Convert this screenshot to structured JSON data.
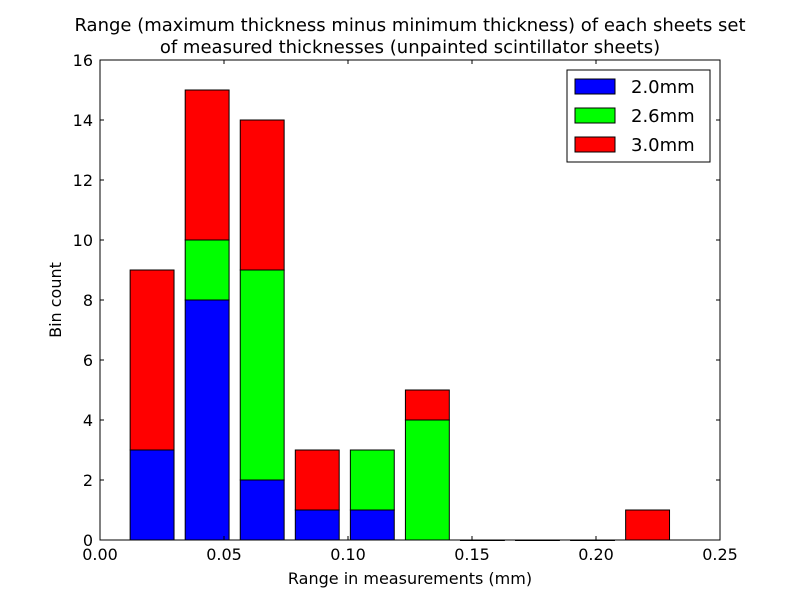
{
  "chart_data": {
    "type": "bar",
    "stacked": true,
    "title_lines": [
      "Range (maximum thickness minus minimum thickness) of each sheets set",
      "of measured thicknesses (unpainted scintillator sheets)"
    ],
    "xlabel": "Range in measurements (mm)",
    "ylabel": "Bin count",
    "xlim": [
      0.0,
      0.25
    ],
    "ylim": [
      0,
      16
    ],
    "xticks": [
      "0.00",
      "0.05",
      "0.10",
      "0.15",
      "0.20",
      "0.25"
    ],
    "xtick_values": [
      0,
      0.05,
      0.1,
      0.15,
      0.2,
      0.25
    ],
    "yticks": [
      "0",
      "2",
      "4",
      "6",
      "8",
      "10",
      "12",
      "14",
      "16"
    ],
    "ytick_values": [
      0,
      2,
      4,
      6,
      8,
      10,
      12,
      14,
      16
    ],
    "bin_centers": [
      0.021,
      0.0432,
      0.0654,
      0.0876,
      0.1098,
      0.132,
      0.1542,
      0.1764,
      0.1986,
      0.2208
    ],
    "bar_width": 0.0177,
    "legend_position": "top-right",
    "series": [
      {
        "name": "2.0mm",
        "color": "#0000ff",
        "values": [
          3,
          8,
          2,
          1,
          1,
          0,
          0,
          0,
          0,
          0
        ]
      },
      {
        "name": "2.6mm",
        "color": "#00ff00",
        "values": [
          0,
          2,
          7,
          0,
          2,
          4,
          0,
          0,
          0,
          0
        ]
      },
      {
        "name": "3.0mm",
        "color": "#ff0000",
        "values": [
          6,
          5,
          5,
          2,
          0,
          1,
          0,
          0,
          0,
          1
        ]
      }
    ]
  }
}
